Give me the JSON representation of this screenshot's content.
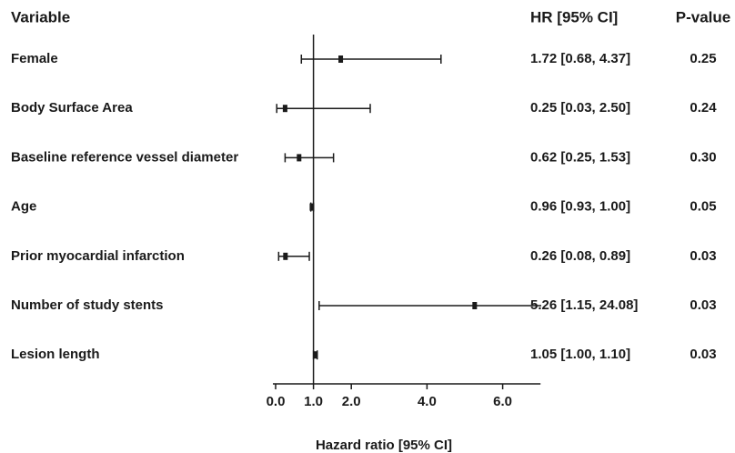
{
  "chart_data": {
    "type": "forest",
    "column_headers": {
      "variable": "Variable",
      "estimate": "HR [95% CI]",
      "p": "P-value"
    },
    "categories": [
      "Female",
      "Body Surface Area",
      "Baseline reference vessel diameter",
      "Age",
      "Prior myocardial infarction",
      "Number of study stents",
      "Lesion length"
    ],
    "values": [
      1.72,
      0.25,
      0.62,
      0.96,
      0.26,
      5.26,
      1.05
    ],
    "lower": [
      0.68,
      0.03,
      0.25,
      0.93,
      0.08,
      1.15,
      1.0
    ],
    "upper": [
      4.37,
      2.5,
      1.53,
      1.0,
      0.89,
      24.08,
      1.1
    ],
    "value_labels": [
      "1.72 [0.68, 4.37]",
      "0.25 [0.03, 2.50]",
      "0.62 [0.25, 1.53]",
      "0.96 [0.93, 1.00]",
      "0.26 [0.08, 0.89]",
      "5.26 [1.15, 24.08]",
      "1.05 [1.00, 1.10]"
    ],
    "p_values": [
      "0.25",
      "0.24",
      "0.30",
      "0.05",
      "0.03",
      "0.03",
      "0.03"
    ],
    "xlabel": "Hazard ratio [95% CI]",
    "xlim": [
      0,
      7
    ],
    "xticks": [
      {
        "value": 0,
        "label": "0.0"
      },
      {
        "value": 1,
        "label": "1.0"
      },
      {
        "value": 2,
        "label": "2.0"
      },
      {
        "value": 4,
        "label": "4.0"
      },
      {
        "value": 6,
        "label": "6.0"
      }
    ],
    "reference_line": 1,
    "color": "#1a1a1a"
  }
}
